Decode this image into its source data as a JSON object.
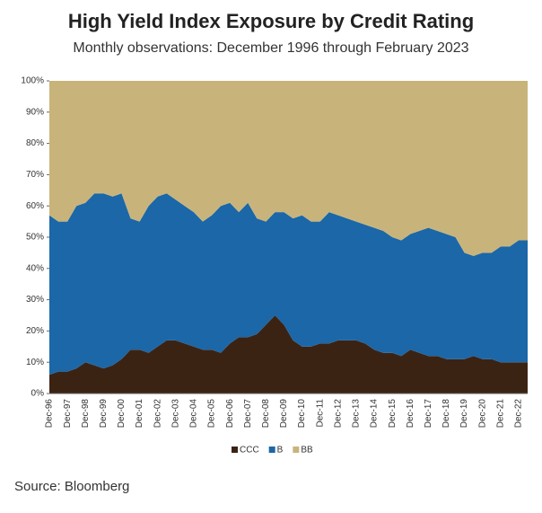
{
  "chart_data": {
    "type": "stacked_area",
    "title": "High Yield Index Exposure by Credit Rating",
    "subtitle": "Monthly observations: December 1996 through February 2023",
    "source": "Source: Bloomberg",
    "categories": [
      "Dec-96",
      null,
      "Dec-97",
      null,
      "Dec-98",
      null,
      "Dec-99",
      null,
      "Dec-00",
      null,
      "Dec-01",
      null,
      "Dec-02",
      null,
      "Dec-03",
      null,
      "Dec-04",
      null,
      "Dec-05",
      null,
      "Dec-06",
      null,
      "Dec-07",
      null,
      "Dec-08",
      null,
      "Dec-09",
      null,
      "Dec-10",
      null,
      "Dec-11",
      null,
      "Dec-12",
      null,
      "Dec-13",
      null,
      "Dec-14",
      null,
      "Dec-15",
      null,
      "Dec-16",
      null,
      "Dec-17",
      null,
      "Dec-18",
      null,
      "Dec-19",
      null,
      "Dec-20",
      null,
      "Dec-21",
      null,
      "Dec-22",
      null
    ],
    "series": [
      {
        "name": "CCC",
        "color": "#3b2314",
        "values": [
          6,
          7,
          7,
          8,
          10,
          9,
          8,
          9,
          11,
          14,
          14,
          13,
          15,
          17,
          17,
          16,
          15,
          14,
          14,
          13,
          16,
          18,
          18,
          19,
          22,
          25,
          22,
          17,
          15,
          15,
          16,
          16,
          17,
          17,
          17,
          16,
          14,
          13,
          13,
          12,
          14,
          13,
          12,
          12,
          11,
          11,
          11,
          12,
          11,
          11,
          10,
          10,
          10,
          10
        ]
      },
      {
        "name": "B",
        "color": "#1b67a8",
        "values": [
          51,
          48,
          48,
          52,
          51,
          55,
          56,
          54,
          53,
          42,
          41,
          47,
          48,
          47,
          45,
          44,
          43,
          41,
          43,
          47,
          45,
          40,
          43,
          37,
          33,
          33,
          36,
          39,
          42,
          40,
          39,
          42,
          40,
          39,
          38,
          38,
          39,
          39,
          37,
          37,
          37,
          39,
          41,
          40,
          40,
          39,
          34,
          32,
          34,
          34,
          37,
          37,
          39,
          39
        ]
      },
      {
        "name": "BB",
        "color": "#c8b47a",
        "values": [
          43,
          45,
          45,
          40,
          39,
          36,
          36,
          37,
          36,
          44,
          45,
          40,
          37,
          36,
          38,
          40,
          42,
          45,
          43,
          40,
          39,
          42,
          39,
          44,
          45,
          42,
          42,
          44,
          43,
          45,
          45,
          42,
          43,
          44,
          45,
          46,
          47,
          48,
          50,
          51,
          49,
          48,
          47,
          48,
          49,
          50,
          55,
          56,
          55,
          55,
          53,
          53,
          51,
          51
        ]
      }
    ],
    "ylim": [
      0,
      100
    ],
    "yticks": [
      {
        "value": 0,
        "label": "0%"
      },
      {
        "value": 10,
        "label": "10%"
      },
      {
        "value": 20,
        "label": "20%"
      },
      {
        "value": 30,
        "label": "30%"
      },
      {
        "value": 40,
        "label": "40%"
      },
      {
        "value": 50,
        "label": "50%"
      },
      {
        "value": 60,
        "label": "60%"
      },
      {
        "value": 70,
        "label": "70%"
      },
      {
        "value": 80,
        "label": "80%"
      },
      {
        "value": 90,
        "label": "90%"
      },
      {
        "value": 100,
        "label": "100%"
      }
    ],
    "legend": "bottom"
  }
}
